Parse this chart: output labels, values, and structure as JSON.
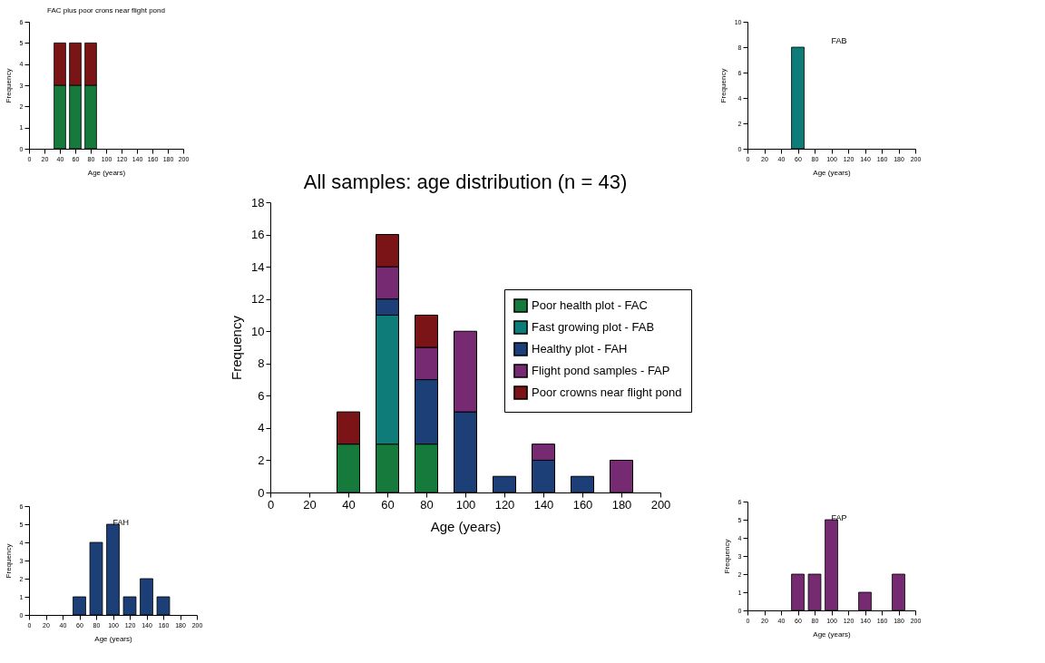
{
  "chart_data": [
    {
      "type": "bar",
      "title": "FAC plus poor crons near flight pond",
      "xlabel": "Age (years)",
      "ylabel": "Frequency",
      "stacked": true,
      "x": [
        40,
        60,
        80
      ],
      "series": [
        {
          "color": "#157a3c",
          "values": [
            3,
            3,
            3
          ]
        },
        {
          "color": "#7a1416",
          "values": [
            2,
            2,
            2
          ]
        }
      ],
      "xlim": [
        0,
        200
      ],
      "xticks": [
        0,
        20,
        40,
        60,
        80,
        100,
        120,
        140,
        160,
        180,
        200
      ],
      "ylim": [
        0,
        6
      ],
      "yticks": [
        0,
        1,
        2,
        3,
        4,
        5,
        6
      ],
      "grid": false,
      "legend": false
    },
    {
      "type": "bar",
      "xlabel": "Age (years)",
      "ylabel": "Frequency",
      "annotations": [
        "FAH"
      ],
      "x": [
        60,
        80,
        100,
        120,
        140,
        160
      ],
      "series": [
        {
          "color": "#1c3f77",
          "values": [
            1,
            4,
            5,
            1,
            2,
            1
          ]
        }
      ],
      "xlim": [
        0,
        200
      ],
      "xticks": [
        0,
        20,
        40,
        60,
        80,
        100,
        120,
        140,
        160,
        180,
        200
      ],
      "ylim": [
        0,
        6
      ],
      "yticks": [
        0,
        1,
        2,
        3,
        4,
        5,
        6
      ],
      "grid": false,
      "legend": false
    },
    {
      "type": "bar",
      "title": "All samples: age distribution (n = 43)",
      "xlabel": "Age (years)",
      "ylabel": "Frequency",
      "stacked": true,
      "x": [
        40,
        60,
        80,
        100,
        120,
        140,
        160,
        180
      ],
      "series": [
        {
          "name": "Poor health plot -  FAC",
          "color": "#157a3c",
          "values": [
            3,
            3,
            3,
            null,
            null,
            null,
            null,
            null
          ]
        },
        {
          "name": "Fast growing plot - FAB",
          "color": "#0e7d7a",
          "values": [
            null,
            8,
            null,
            null,
            null,
            null,
            null,
            null
          ]
        },
        {
          "name": "Healthy plot - FAH",
          "color": "#1c3f77",
          "values": [
            null,
            1,
            4,
            5,
            1,
            2,
            1,
            null
          ]
        },
        {
          "name": "Flight pond samples - FAP",
          "color": "#762a72",
          "values": [
            null,
            2,
            2,
            5,
            null,
            1,
            null,
            2
          ]
        },
        {
          "name": "Poor crowns near flight pond",
          "color": "#7a1416",
          "values": [
            2,
            2,
            2,
            null,
            null,
            null,
            null,
            null
          ]
        }
      ],
      "xlim": [
        0,
        200
      ],
      "xticks": [
        0,
        20,
        40,
        60,
        80,
        100,
        120,
        140,
        160,
        180,
        200
      ],
      "ylim": [
        0,
        18
      ],
      "yticks": [
        0,
        2,
        4,
        6,
        8,
        10,
        12,
        14,
        16,
        18
      ],
      "grid": false,
      "legend": "right"
    },
    {
      "type": "bar",
      "xlabel": "Age (years)",
      "ylabel": "Frequency",
      "annotations": [
        "FAB"
      ],
      "x": [
        60
      ],
      "series": [
        {
          "color": "#0e7d7a",
          "values": [
            8
          ]
        }
      ],
      "xlim": [
        0,
        200
      ],
      "xticks": [
        0,
        20,
        40,
        60,
        80,
        100,
        120,
        140,
        160,
        180,
        200
      ],
      "ylim": [
        0,
        10
      ],
      "yticks": [
        0,
        2,
        4,
        6,
        8,
        10
      ],
      "grid": false,
      "legend": false
    },
    {
      "type": "bar",
      "xlabel": "Age (years)",
      "ylabel": "Frequency",
      "annotations": [
        "FAP"
      ],
      "x": [
        60,
        80,
        100,
        140,
        180
      ],
      "series": [
        {
          "color": "#762a72",
          "values": [
            2,
            2,
            5,
            1,
            2
          ]
        }
      ],
      "xlim": [
        0,
        200
      ],
      "xticks": [
        0,
        20,
        40,
        60,
        80,
        100,
        120,
        140,
        160,
        180,
        200
      ],
      "ylim": [
        0,
        6
      ],
      "yticks": [
        0,
        1,
        2,
        3,
        4,
        5,
        6
      ],
      "grid": false,
      "legend": false
    }
  ]
}
